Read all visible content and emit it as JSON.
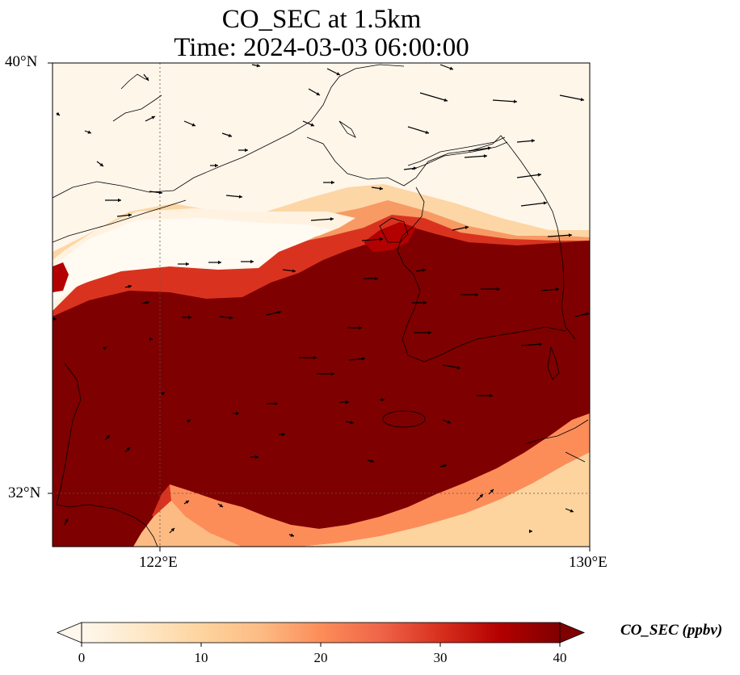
{
  "title": {
    "line1": "CO_SEC at 1.5km",
    "line2": "Time: 2024-03-03 06:00:00"
  },
  "axes": {
    "lat_ticks": [
      "40°N",
      "32°N"
    ],
    "lon_ticks": [
      "122°E",
      "130°E"
    ],
    "lat_range": [
      31,
      40
    ],
    "lon_range": [
      120,
      130
    ]
  },
  "colorbar": {
    "label": "CO_SEC (ppbv)",
    "ticks": [
      "0",
      "10",
      "20",
      "30",
      "40"
    ],
    "range": [
      0,
      40
    ],
    "colormap": "OrRd",
    "extend": "both",
    "colors": [
      "#fff7ec",
      "#fee8c8",
      "#fdd49e",
      "#fdbb84",
      "#fc8d59",
      "#ef6548",
      "#d7301f",
      "#b30000",
      "#7f0000"
    ]
  },
  "map_data": {
    "variable": "CO_SEC",
    "height": "1.5km",
    "units": "ppbv",
    "high_region": "Yellow Sea to Korean Peninsula and East China Sea (~40 ppbv)",
    "low_region": "Bohai Sea / northern Shandong and NE China (~0 ppbv)",
    "wind_vectors": "predominantly westerly to west-northwesterly"
  }
}
